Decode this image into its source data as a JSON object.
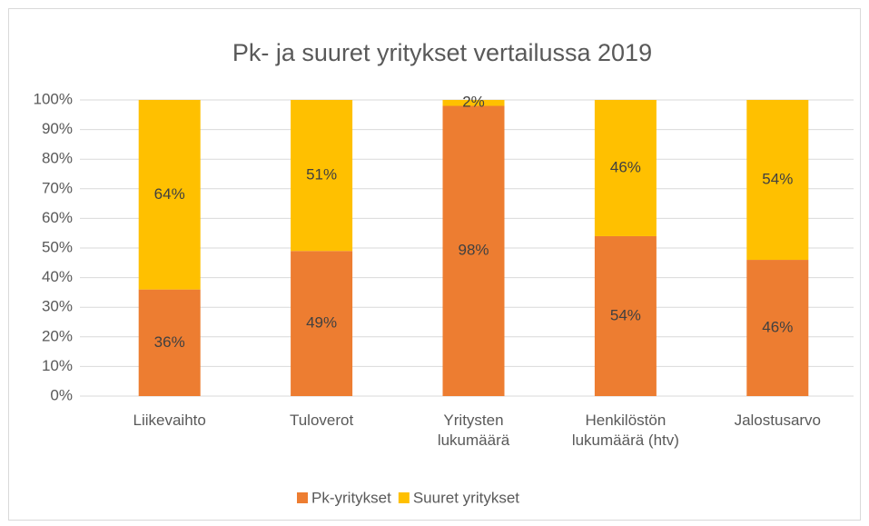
{
  "chart_data": {
    "type": "stacked_bar",
    "title": "Pk- ja suuret yritykset vertailussa 2019",
    "categories": [
      "Liikevaihto",
      "Tuloverot",
      "Yritysten lukumäärä",
      "Henkilöstön lukumäärä (htv)",
      "Jalostusarvo"
    ],
    "series": [
      {
        "name": "Pk-yritykset",
        "color": "#ED7D31",
        "values": [
          36,
          49,
          98,
          54,
          46
        ],
        "value_labels": [
          "36%",
          "49%",
          "98%",
          "54%",
          "46%"
        ]
      },
      {
        "name": "Suuret yritykset",
        "color": "#FFC000",
        "values": [
          64,
          51,
          2,
          46,
          54
        ],
        "value_labels": [
          "64%",
          "51%",
          "2%",
          "46%",
          "54%"
        ]
      }
    ],
    "ylim": [
      0,
      100
    ],
    "yticks": [
      {
        "value": 0,
        "label": "0%"
      },
      {
        "value": 10,
        "label": "10%"
      },
      {
        "value": 20,
        "label": "20%"
      },
      {
        "value": 30,
        "label": "30%"
      },
      {
        "value": 40,
        "label": "40%"
      },
      {
        "value": 50,
        "label": "50%"
      },
      {
        "value": 60,
        "label": "60%"
      },
      {
        "value": 70,
        "label": "70%"
      },
      {
        "value": 80,
        "label": "80%"
      },
      {
        "value": 90,
        "label": "90%"
      },
      {
        "value": 100,
        "label": "100%"
      }
    ],
    "grid": true,
    "legend": "bottom"
  }
}
